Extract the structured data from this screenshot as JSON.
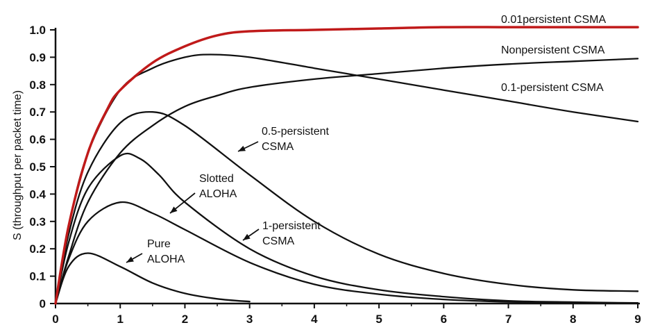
{
  "chart_data": {
    "type": "line",
    "title": "",
    "xlabel": "",
    "ylabel": "S (throughput per packet time)",
    "xlim": [
      0,
      9
    ],
    "ylim": [
      0,
      1.0
    ],
    "xticks": [
      "0",
      "1",
      "2",
      "3",
      "4",
      "5",
      "6",
      "7",
      "8",
      "9"
    ],
    "yticks": [
      "0",
      "0.1",
      "0.2",
      "0.3",
      "0.4",
      "0.5",
      "0.6",
      "0.7",
      "0.8",
      "0.9",
      "1.0"
    ],
    "grid": false,
    "colors": {
      "curve": "#111111",
      "highlight": "#c01a1a"
    },
    "series": [
      {
        "name": "0.01persistent CSMA",
        "color": "#c01a1a",
        "x": [
          0,
          0.2,
          0.5,
          0.8,
          1.0,
          1.5,
          2.0,
          2.5,
          3.0,
          4.0,
          5.0,
          6.0,
          7.0,
          8.0,
          9.0
        ],
        "y": [
          0,
          0.28,
          0.55,
          0.71,
          0.78,
          0.88,
          0.94,
          0.98,
          0.995,
          1.0,
          1.005,
          1.01,
          1.01,
          1.01,
          1.01
        ]
      },
      {
        "name": "Nonpersistent CSMA",
        "color": "#111111",
        "x": [
          0,
          0.2,
          0.5,
          1.0,
          1.5,
          2.0,
          2.5,
          3.0,
          4.0,
          5.0,
          6.0,
          7.0,
          8.0,
          9.0
        ],
        "y": [
          0,
          0.17,
          0.37,
          0.55,
          0.65,
          0.72,
          0.76,
          0.79,
          0.82,
          0.84,
          0.86,
          0.875,
          0.885,
          0.895
        ]
      },
      {
        "name": "0.1-persistent CSMA",
        "color": "#111111",
        "x": [
          0,
          0.2,
          0.5,
          1.0,
          1.5,
          2.0,
          2.4,
          3.0,
          4.0,
          5.0,
          6.0,
          7.0,
          8.0,
          9.0
        ],
        "y": [
          0,
          0.28,
          0.55,
          0.78,
          0.86,
          0.9,
          0.91,
          0.9,
          0.86,
          0.82,
          0.78,
          0.74,
          0.7,
          0.665
        ]
      },
      {
        "name": "0.5-persistent CSMA",
        "color": "#111111",
        "x": [
          0,
          0.2,
          0.5,
          1.0,
          1.5,
          2.0,
          3.0,
          4.0,
          5.0,
          6.0,
          7.0,
          8.0,
          9.0
        ],
        "y": [
          0,
          0.25,
          0.48,
          0.66,
          0.7,
          0.65,
          0.47,
          0.3,
          0.18,
          0.11,
          0.07,
          0.05,
          0.045
        ]
      },
      {
        "name": "Slotted ALOHA",
        "color": "#111111",
        "x": [
          0,
          0.2,
          0.5,
          1.0,
          1.5,
          2.0,
          3.0,
          4.0,
          5.0,
          6.0,
          7.0,
          8.0,
          9.0
        ],
        "y": [
          0,
          0.16,
          0.3,
          0.37,
          0.33,
          0.27,
          0.15,
          0.07,
          0.034,
          0.015,
          0.006,
          0.003,
          0.001
        ]
      },
      {
        "name": "1-persistent CSMA",
        "color": "#111111",
        "x": [
          0,
          0.2,
          0.5,
          1.0,
          1.3,
          1.6,
          2.0,
          3.0,
          4.0,
          5.0,
          6.0,
          7.0,
          8.0,
          9.0
        ],
        "y": [
          0,
          0.22,
          0.42,
          0.54,
          0.53,
          0.47,
          0.37,
          0.2,
          0.1,
          0.05,
          0.025,
          0.01,
          0.005,
          0.002
        ]
      },
      {
        "name": "Pure ALOHA",
        "color": "#111111",
        "x": [
          0,
          0.2,
          0.5,
          1.0,
          1.5,
          2.0,
          2.5,
          3.0
        ],
        "y": [
          0,
          0.134,
          0.184,
          0.135,
          0.075,
          0.037,
          0.017,
          0.007
        ]
      }
    ],
    "annotations": [
      {
        "id": "p001",
        "lines": [
          "0.01persistent CSMA"
        ]
      },
      {
        "id": "nonp",
        "lines": [
          "Nonpersistent CSMA"
        ]
      },
      {
        "id": "p01",
        "lines": [
          "0.1-persistent CSMA"
        ]
      },
      {
        "id": "p05",
        "lines": [
          "0.5-persistent",
          "CSMA"
        ]
      },
      {
        "id": "slotted",
        "lines": [
          "Slotted",
          "ALOHA"
        ]
      },
      {
        "id": "p1",
        "lines": [
          "1-persistent",
          "CSMA"
        ]
      },
      {
        "id": "pure",
        "lines": [
          "Pure",
          "ALOHA"
        ]
      }
    ]
  }
}
